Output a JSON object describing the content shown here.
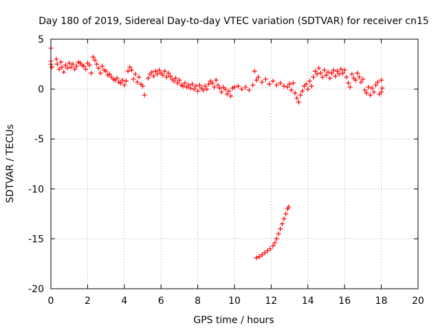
{
  "chart_data": {
    "type": "scatter",
    "title": "Day 180 of 2019, Sidereal Day-to-day VTEC variation (SDTVAR) for receiver cn15",
    "xlabel": "GPS time / hours",
    "ylabel": "SDTVAR / TECUs",
    "xlim": [
      0,
      20
    ],
    "ylim": [
      -20,
      5
    ],
    "xticks": [
      0,
      2,
      4,
      6,
      8,
      10,
      12,
      14,
      16,
      18,
      20
    ],
    "yticks": [
      -20,
      -15,
      -10,
      -5,
      0,
      5
    ],
    "xtick_labels": [
      "0",
      "2",
      "4",
      "6",
      "8",
      "10",
      "12",
      "14",
      "16",
      "18",
      "20"
    ],
    "ytick_labels": [
      "-20",
      "-15",
      "-10",
      "-5",
      "0",
      "5"
    ],
    "grid": true,
    "marker": "+",
    "color": "#ff0000",
    "series": [
      {
        "name": "upper band",
        "points": [
          [
            0.0,
            4.1
          ],
          [
            0.0,
            2.8
          ],
          [
            0.0,
            2.5
          ],
          [
            0.05,
            2.2
          ],
          [
            0.3,
            3.0
          ],
          [
            0.35,
            2.5
          ],
          [
            0.45,
            2.0
          ],
          [
            0.55,
            2.7
          ],
          [
            0.6,
            2.2
          ],
          [
            0.7,
            1.7
          ],
          [
            0.8,
            2.4
          ],
          [
            0.9,
            2.1
          ],
          [
            1.0,
            2.6
          ],
          [
            1.1,
            2.2
          ],
          [
            1.2,
            2.5
          ],
          [
            1.3,
            2.0
          ],
          [
            1.4,
            2.3
          ],
          [
            1.5,
            2.7
          ],
          [
            1.6,
            2.6
          ],
          [
            1.7,
            2.4
          ],
          [
            1.8,
            2.3
          ],
          [
            1.9,
            2.0
          ],
          [
            2.0,
            2.6
          ],
          [
            2.1,
            2.4
          ],
          [
            2.2,
            1.6
          ],
          [
            2.3,
            3.2
          ],
          [
            2.4,
            2.9
          ],
          [
            2.5,
            2.5
          ],
          [
            2.6,
            2.1
          ],
          [
            2.7,
            1.6
          ],
          [
            2.8,
            2.3
          ],
          [
            2.9,
            1.9
          ],
          [
            3.0,
            1.8
          ],
          [
            3.1,
            1.4
          ],
          [
            3.2,
            1.5
          ],
          [
            3.3,
            1.2
          ],
          [
            3.4,
            1.0
          ],
          [
            3.5,
            0.9
          ],
          [
            3.6,
            1.1
          ],
          [
            3.7,
            0.7
          ],
          [
            3.8,
            0.6
          ],
          [
            3.9,
            0.9
          ],
          [
            4.0,
            0.4
          ],
          [
            4.1,
            0.8
          ],
          [
            4.2,
            1.8
          ],
          [
            4.3,
            2.2
          ],
          [
            4.4,
            1.9
          ],
          [
            4.5,
            1.0
          ],
          [
            4.6,
            1.5
          ],
          [
            4.7,
            0.7
          ],
          [
            4.8,
            1.2
          ],
          [
            4.9,
            0.5
          ],
          [
            5.0,
            0.3
          ],
          [
            5.1,
            -0.6
          ],
          [
            5.3,
            1.1
          ],
          [
            5.4,
            1.5
          ],
          [
            5.5,
            1.7
          ],
          [
            5.6,
            1.3
          ],
          [
            5.7,
            1.8
          ],
          [
            5.8,
            1.5
          ],
          [
            5.9,
            1.9
          ],
          [
            6.0,
            1.6
          ],
          [
            6.1,
            1.4
          ],
          [
            6.2,
            1.8
          ],
          [
            6.3,
            1.2
          ],
          [
            6.4,
            1.6
          ],
          [
            6.5,
            1.3
          ],
          [
            6.6,
            1.0
          ],
          [
            6.7,
            0.8
          ],
          [
            6.8,
            1.1
          ],
          [
            6.9,
            0.6
          ],
          [
            7.0,
            0.9
          ],
          [
            7.1,
            0.4
          ],
          [
            7.2,
            0.3
          ],
          [
            7.3,
            0.6
          ],
          [
            7.4,
            0.2
          ],
          [
            7.5,
            0.4
          ],
          [
            7.6,
            0.1
          ],
          [
            7.7,
            0.5
          ],
          [
            7.8,
            0.0
          ],
          [
            7.9,
            0.3
          ],
          [
            8.0,
            -0.2
          ],
          [
            8.1,
            0.4
          ],
          [
            8.2,
            0.1
          ],
          [
            8.3,
            -0.1
          ],
          [
            8.4,
            0.3
          ],
          [
            8.5,
            0.0
          ],
          [
            8.6,
            0.5
          ],
          [
            8.7,
            0.8
          ],
          [
            8.8,
            0.6
          ],
          [
            8.9,
            0.2
          ],
          [
            9.0,
            0.9
          ],
          [
            9.1,
            0.4
          ],
          [
            9.2,
            0.1
          ],
          [
            9.3,
            -0.3
          ],
          [
            9.4,
            0.2
          ],
          [
            9.5,
            0.0
          ],
          [
            9.6,
            -0.5
          ],
          [
            9.7,
            -0.2
          ],
          [
            9.8,
            -0.7
          ],
          [
            9.9,
            0.1
          ],
          [
            10.0,
            0.2
          ],
          [
            10.2,
            0.3
          ],
          [
            10.4,
            0.0
          ],
          [
            10.6,
            0.2
          ],
          [
            10.8,
            -0.1
          ],
          [
            11.0,
            0.4
          ],
          [
            11.2,
            0.9
          ],
          [
            11.1,
            1.8
          ],
          [
            11.3,
            1.2
          ],
          [
            11.5,
            0.7
          ],
          [
            11.7,
            1.0
          ],
          [
            11.9,
            0.5
          ],
          [
            12.1,
            0.8
          ],
          [
            12.3,
            0.4
          ],
          [
            12.5,
            0.6
          ],
          [
            12.7,
            0.3
          ],
          [
            12.9,
            0.2
          ],
          [
            13.0,
            0.5
          ],
          [
            13.1,
            -0.1
          ],
          [
            13.2,
            0.6
          ],
          [
            13.3,
            -0.4
          ],
          [
            13.4,
            -0.9
          ],
          [
            13.5,
            -1.3
          ],
          [
            13.6,
            -0.6
          ],
          [
            13.7,
            -0.2
          ],
          [
            13.8,
            0.3
          ],
          [
            13.9,
            0.5
          ],
          [
            14.0,
            0.0
          ],
          [
            14.1,
            0.8
          ],
          [
            14.2,
            0.3
          ],
          [
            14.3,
            1.2
          ],
          [
            14.4,
            1.8
          ],
          [
            14.5,
            1.5
          ],
          [
            14.6,
            2.1
          ],
          [
            14.7,
            1.6
          ],
          [
            14.8,
            1.2
          ],
          [
            14.9,
            1.9
          ],
          [
            15.0,
            1.4
          ],
          [
            15.1,
            1.7
          ],
          [
            15.2,
            1.1
          ],
          [
            15.3,
            1.6
          ],
          [
            15.4,
            1.9
          ],
          [
            15.5,
            1.3
          ],
          [
            15.6,
            1.8
          ],
          [
            15.7,
            1.5
          ],
          [
            15.8,
            2.0
          ],
          [
            15.9,
            1.6
          ],
          [
            16.0,
            1.9
          ],
          [
            16.1,
            1.2
          ],
          [
            16.2,
            0.6
          ],
          [
            16.3,
            0.2
          ],
          [
            16.4,
            1.5
          ],
          [
            16.5,
            1.1
          ],
          [
            16.6,
            0.9
          ],
          [
            16.7,
            1.6
          ],
          [
            16.8,
            1.2
          ],
          [
            16.9,
            0.7
          ],
          [
            17.0,
            1.0
          ],
          [
            17.1,
            -0.1
          ],
          [
            17.2,
            -0.4
          ],
          [
            17.3,
            0.2
          ],
          [
            17.4,
            -0.6
          ],
          [
            17.5,
            0.1
          ],
          [
            17.6,
            -0.3
          ],
          [
            17.7,
            0.4
          ],
          [
            17.8,
            0.7
          ],
          [
            17.9,
            -0.5
          ],
          [
            18.0,
            0.9
          ],
          [
            18.0,
            -0.3
          ],
          [
            18.05,
            0.1
          ]
        ]
      },
      {
        "name": "lower arc",
        "points": [
          [
            11.2,
            -16.9
          ],
          [
            11.35,
            -16.8
          ],
          [
            11.5,
            -16.6
          ],
          [
            11.65,
            -16.4
          ],
          [
            11.8,
            -16.2
          ],
          [
            11.95,
            -16.0
          ],
          [
            12.1,
            -15.7
          ],
          [
            12.2,
            -15.4
          ],
          [
            12.3,
            -15.0
          ],
          [
            12.4,
            -14.5
          ],
          [
            12.5,
            -14.0
          ],
          [
            12.6,
            -13.5
          ],
          [
            12.7,
            -13.0
          ],
          [
            12.8,
            -12.5
          ],
          [
            12.9,
            -12.0
          ],
          [
            12.95,
            -11.8
          ]
        ]
      }
    ]
  }
}
